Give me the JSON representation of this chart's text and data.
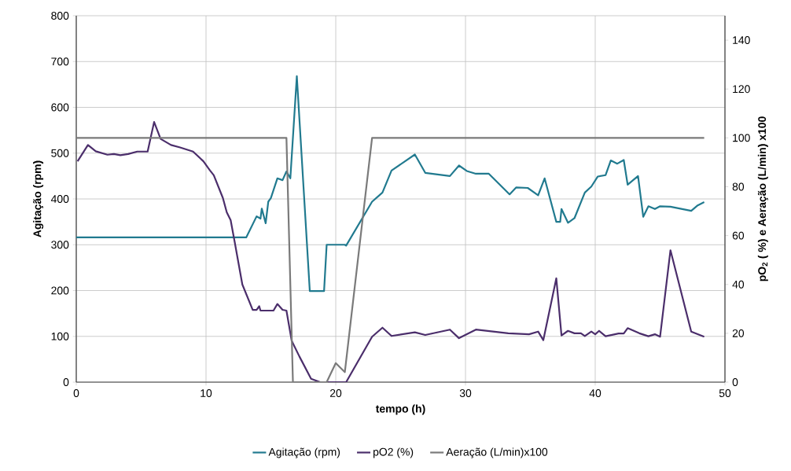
{
  "chart_data": {
    "type": "line",
    "xlabel": "tempo (h)",
    "ylabel": "Agitação (rpm)",
    "y2label": "pO$_{2}$ ( %) e Aeração (L/min) x100",
    "xlim": [
      0,
      50
    ],
    "xticks": [
      0,
      10,
      20,
      30,
      40,
      50
    ],
    "ylim": [
      0,
      800
    ],
    "yticks": [
      0,
      100,
      200,
      300,
      400,
      500,
      600,
      700,
      800
    ],
    "y2lim": [
      0,
      150
    ],
    "y2ticks": [
      0,
      20,
      40,
      60,
      80,
      100,
      120,
      140
    ],
    "grid": true,
    "legend": "bottom",
    "series": [
      {
        "name": "Agitação (rpm)",
        "color": "#217a8f",
        "x": [
          0,
          13.1,
          13.9,
          14.2,
          14.3,
          14.6,
          14.8,
          15.0,
          15.5,
          15.9,
          16.2,
          16.5,
          17.0,
          18.0,
          19.1,
          19.3,
          20.7,
          20.8,
          22.8,
          23.6,
          24.3,
          26.1,
          26.9,
          28.8,
          29.5,
          30.1,
          30.8,
          31.8,
          33.4,
          33.9,
          34.8,
          35.6,
          36.1,
          37.0,
          37.3,
          37.4,
          37.9,
          38.4,
          39.2,
          39.7,
          40.2,
          40.8,
          41.2,
          41.7,
          42.2,
          42.5,
          43.3,
          43.7,
          44.1,
          44.6,
          45.0,
          45.8,
          47.4,
          47.9,
          48.4
        ],
        "values": [
          316,
          316,
          362,
          357,
          379,
          347,
          394,
          402,
          445,
          441,
          460,
          445,
          668,
          199,
          199,
          300,
          300,
          298,
          394,
          414,
          462,
          497,
          457,
          450,
          473,
          461,
          455,
          455,
          410,
          425,
          424,
          408,
          445,
          350,
          350,
          378,
          348,
          358,
          414,
          427,
          449,
          452,
          484,
          477,
          485,
          431,
          450,
          361,
          384,
          378,
          384,
          383,
          374,
          386,
          393
        ]
      },
      {
        "name": "pO2 (%)",
        "color": "#4b2e6b",
        "axis": "y2",
        "x": [
          0.1,
          0.9,
          1.5,
          2.4,
          2.9,
          3.4,
          4.0,
          4.7,
          5.5,
          6.0,
          6.5,
          7.3,
          8.0,
          9.0,
          9.8,
          10.3,
          10.6,
          11.3,
          11.6,
          11.9,
          12.2,
          12.8,
          13.6,
          13.9,
          14.1,
          14.2,
          15.2,
          15.5,
          15.9,
          16.2,
          16.6,
          17.2,
          18.1,
          18.8,
          20.7,
          20.8,
          22.8,
          23.6,
          24.3,
          26.1,
          26.9,
          28.8,
          29.5,
          30.8,
          33.3,
          34.9,
          35.6,
          36.0,
          37.0,
          37.4,
          37.9,
          38.4,
          38.9,
          39.2,
          39.7,
          40.0,
          40.3,
          40.8,
          41.8,
          42.2,
          42.5,
          43.4,
          44.1,
          44.6,
          45.0,
          45.8,
          47.4,
          48.4
        ],
        "values": [
          90.4,
          97.1,
          94.5,
          93.1,
          93.4,
          92.9,
          93.4,
          94.4,
          94.4,
          106.5,
          99.6,
          97.1,
          96.1,
          94.4,
          90.4,
          86.7,
          84.7,
          75.4,
          69.5,
          66.3,
          57.7,
          40.0,
          29.6,
          29.6,
          31.1,
          29.3,
          29.3,
          32.0,
          29.6,
          29.3,
          17.0,
          10.5,
          1.4,
          0,
          0,
          0,
          18.6,
          22.3,
          18.9,
          20.4,
          19.3,
          21.5,
          18.0,
          21.5,
          20.0,
          19.6,
          20.7,
          17.2,
          42.5,
          19.1,
          21.0,
          20.0,
          20.0,
          18.9,
          20.7,
          19.6,
          21.0,
          18.8,
          19.9,
          19.9,
          22.1,
          20.0,
          18.8,
          19.6,
          18.6,
          54.0,
          20.7,
          18.6
        ]
      },
      {
        "name": "Aeração (L/min)x100",
        "color": "#7a7a7a",
        "axis": "y2",
        "x": [
          0,
          16.2,
          16.7,
          19.3,
          20.0,
          20.7,
          22.8,
          48.4
        ],
        "values": [
          100,
          100,
          0,
          0,
          7.8,
          4.1,
          100,
          100
        ]
      }
    ]
  }
}
